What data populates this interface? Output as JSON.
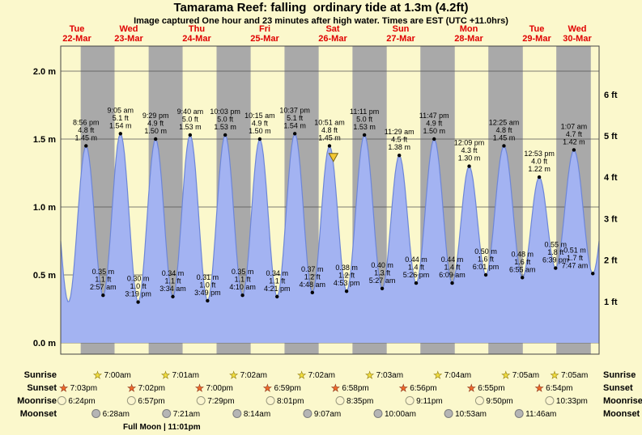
{
  "title": "Tamarama Reef: falling  ordinary tide at 1.3m (4.2ft)",
  "subtitle": "Image captured One hour and 23 minutes after high water. Times are EST (UTC +11.0hrs)",
  "colors": {
    "page_bg": "#fbf8cc",
    "day_bg": "#fbf8cc",
    "night_bg": "#a9a9a9",
    "curve_fill": "#a3b3f2",
    "curve_stroke": "#6d86d8",
    "day_label_red": "#e00000",
    "marker_fill": "#f2c832",
    "marker_stroke": "#7a6410",
    "sunrise_star": "#f2df3f",
    "sunset_star": "#ef6a2a",
    "moonrise_circle": "#fbf5cf",
    "moonset_circle": "#b5b5b5"
  },
  "axes": {
    "left_ticks": [
      "0.0 m",
      "0.5 m",
      "1.0 m",
      "1.5 m",
      "2.0 m"
    ],
    "right_ticks": [
      "1 ft",
      "2 ft",
      "3 ft",
      "4 ft",
      "5 ft",
      "6 ft"
    ]
  },
  "days": [
    {
      "name": "Tue",
      "date": "22-Mar",
      "noon_t": 0
    },
    {
      "name": "Wed",
      "date": "23-Mar",
      "noon_t": 24
    },
    {
      "name": "Thu",
      "date": "24-Mar",
      "noon_t": 48
    },
    {
      "name": "Fri",
      "date": "25-Mar",
      "noon_t": 72
    },
    {
      "name": "Sat",
      "date": "26-Mar",
      "noon_t": 96
    },
    {
      "name": "Sun",
      "date": "27-Mar",
      "noon_t": 120
    },
    {
      "name": "Mon",
      "date": "28-Mar",
      "noon_t": 144
    },
    {
      "name": "Tue",
      "date": "29-Mar",
      "noon_t": 168
    },
    {
      "name": "Wed",
      "date": "30-Mar",
      "noon_t": 192
    }
  ],
  "chart_data": {
    "type": "area",
    "title": "Tamarama Reef tide heights",
    "x_axis": "time, hours offset t from Tue 22-Mar 12:00 to Wed 30-Mar ~10:00",
    "ylim_m": [
      0,
      2.2
    ],
    "grid_m_levels": [
      0,
      0.5,
      1.0,
      1.5,
      2.0
    ],
    "tide_events": [
      {
        "t": -3.6,
        "height_m": 1.44,
        "type": "high",
        "labeled": false,
        "estimated": true
      },
      {
        "t": 2.73,
        "height_m": 0.3,
        "type": "low",
        "labeled": false,
        "estimated": true
      },
      {
        "t": 8.933,
        "day": "Tue 22-Mar",
        "time": "8:56 pm",
        "ft": "4.8 ft",
        "m": "1.45 m",
        "height_m": 1.45,
        "type": "high",
        "labeled": true
      },
      {
        "t": 14.95,
        "day": "Wed 23-Mar",
        "time": "2:57 am",
        "ft": "1.1 ft",
        "m": "0.35 m",
        "height_m": 0.35,
        "type": "low",
        "labeled": true
      },
      {
        "t": 21.083,
        "day": "Wed 23-Mar",
        "time": "9:05 am",
        "ft": "5.1 ft",
        "m": "1.54 m",
        "height_m": 1.54,
        "type": "high",
        "labeled": true
      },
      {
        "t": 27.317,
        "day": "Wed 23-Mar",
        "time": "3:19 pm",
        "ft": "1.0 ft",
        "m": "0.30 m",
        "height_m": 0.3,
        "type": "low",
        "labeled": true
      },
      {
        "t": 33.483,
        "day": "Wed 23-Mar",
        "time": "9:29 pm",
        "ft": "4.9 ft",
        "m": "1.50 m",
        "height_m": 1.5,
        "type": "high",
        "labeled": true
      },
      {
        "t": 39.567,
        "day": "Thu 24-Mar",
        "time": "3:34 am",
        "ft": "1.1 ft",
        "m": "0.34 m",
        "height_m": 0.34,
        "type": "low",
        "labeled": true
      },
      {
        "t": 45.667,
        "day": "Thu 24-Mar",
        "time": "9:40 am",
        "ft": "5.0 ft",
        "m": "1.53 m",
        "height_m": 1.53,
        "type": "high",
        "labeled": true
      },
      {
        "t": 51.817,
        "day": "Thu 24-Mar",
        "time": "3:49 pm",
        "ft": "1.0 ft",
        "m": "0.31 m",
        "height_m": 0.31,
        "type": "low",
        "labeled": true
      },
      {
        "t": 58.05,
        "day": "Thu 24-Mar",
        "time": "10:03 pm",
        "ft": "5.0 ft",
        "m": "1.53 m",
        "height_m": 1.53,
        "type": "high",
        "labeled": true
      },
      {
        "t": 64.167,
        "day": "Fri 25-Mar",
        "time": "4:10 am",
        "ft": "1.1 ft",
        "m": "0.35 m",
        "height_m": 0.35,
        "type": "low",
        "labeled": true
      },
      {
        "t": 70.25,
        "day": "Fri 25-Mar",
        "time": "10:15 am",
        "ft": "4.9 ft",
        "m": "1.50 m",
        "height_m": 1.5,
        "type": "high",
        "labeled": true
      },
      {
        "t": 76.35,
        "day": "Fri 25-Mar",
        "time": "4:21 pm",
        "ft": "1.1 ft",
        "m": "0.34 m",
        "height_m": 0.34,
        "type": "low",
        "labeled": true
      },
      {
        "t": 82.617,
        "day": "Fri 25-Mar",
        "time": "10:37 pm",
        "ft": "5.1 ft",
        "m": "1.54 m",
        "height_m": 1.54,
        "type": "high",
        "labeled": true
      },
      {
        "t": 88.8,
        "day": "Sat 26-Mar",
        "time": "4:48 am",
        "ft": "1.2 ft",
        "m": "0.37 m",
        "height_m": 0.37,
        "type": "low",
        "labeled": true
      },
      {
        "t": 94.85,
        "day": "Sat 26-Mar",
        "time": "10:51 am",
        "ft": "4.8 ft",
        "m": "1.45 m",
        "height_m": 1.45,
        "type": "high",
        "labeled": true
      },
      {
        "t": 100.883,
        "day": "Sat 26-Mar",
        "time": "4:53 pm",
        "ft": "1.2 ft",
        "m": "0.38 m",
        "height_m": 0.38,
        "type": "low",
        "labeled": true
      },
      {
        "t": 107.183,
        "day": "Sat 26-Mar",
        "time": "11:11 pm",
        "ft": "5.0 ft",
        "m": "1.53 m",
        "height_m": 1.53,
        "type": "high",
        "labeled": true
      },
      {
        "t": 113.45,
        "day": "Sun 27-Mar",
        "time": "5:27 am",
        "ft": "1.3 ft",
        "m": "0.40 m",
        "height_m": 0.4,
        "type": "low",
        "labeled": true
      },
      {
        "t": 119.483,
        "day": "Sun 27-Mar",
        "time": "11:29 am",
        "ft": "4.5 ft",
        "m": "1.38 m",
        "height_m": 1.38,
        "type": "high",
        "labeled": true
      },
      {
        "t": 125.433,
        "day": "Sun 27-Mar",
        "time": "5:26 pm",
        "ft": "1.4 ft",
        "m": "0.44 m",
        "height_m": 0.44,
        "type": "low",
        "labeled": true
      },
      {
        "t": 131.783,
        "day": "Sun 27-Mar",
        "time": "11:47 pm",
        "ft": "4.9 ft",
        "m": "1.50 m",
        "height_m": 1.5,
        "type": "high",
        "labeled": true
      },
      {
        "t": 138.15,
        "day": "Mon 28-Mar",
        "time": "6:09 am",
        "ft": "1.4 ft",
        "m": "0.44 m",
        "height_m": 0.44,
        "type": "low",
        "labeled": true
      },
      {
        "t": 144.15,
        "day": "Mon 28-Mar",
        "time": "12:09 pm",
        "ft": "4.3 ft",
        "m": "1.30 m",
        "height_m": 1.3,
        "type": "high",
        "labeled": true
      },
      {
        "t": 150.017,
        "day": "Mon 28-Mar",
        "time": "6:01 pm",
        "ft": "1.6 ft",
        "m": "0.50 m",
        "height_m": 0.5,
        "type": "low",
        "labeled": true
      },
      {
        "t": 156.417,
        "day": "Tue 29-Mar",
        "time": "12:25 am",
        "ft": "4.8 ft",
        "m": "1.45 m",
        "height_m": 1.45,
        "type": "high",
        "labeled": true
      },
      {
        "t": 162.917,
        "day": "Tue 29-Mar",
        "time": "6:55 am",
        "ft": "1.6 ft",
        "m": "0.48 m",
        "height_m": 0.48,
        "type": "low",
        "labeled": true
      },
      {
        "t": 168.883,
        "day": "Tue 29-Mar",
        "time": "12:53 pm",
        "ft": "4.0 ft",
        "m": "1.22 m",
        "height_m": 1.22,
        "type": "high",
        "labeled": true
      },
      {
        "t": 174.65,
        "day": "Tue 29-Mar",
        "time": "6:39 pm",
        "ft": "1.8 ft",
        "m": "0.55 m",
        "height_m": 0.55,
        "type": "low",
        "labeled": true
      },
      {
        "t": 181.117,
        "day": "Wed 30-Mar",
        "time": "1:07 am",
        "ft": "4.7 ft",
        "m": "1.42 m",
        "height_m": 1.42,
        "type": "high",
        "labeled": true
      },
      {
        "t": 187.783,
        "day": "Wed 30-Mar",
        "time": "7:47 am",
        "ft": "1.7 ft",
        "m": "0.51 m",
        "height_m": 0.51,
        "type": "low",
        "labeled": true
      },
      {
        "t": 194.1,
        "height_m": 1.38,
        "type": "high",
        "labeled": false,
        "estimated": true
      }
    ]
  },
  "marker": {
    "t": 96.233,
    "description": "current time, 1h23m after 10:51 am high water"
  },
  "astro": {
    "sunrise": {
      "label": "Sunrise",
      "items": [
        {
          "t": 19.0,
          "time": "7:00am"
        },
        {
          "t": 43.017,
          "time": "7:01am"
        },
        {
          "t": 67.033,
          "time": "7:02am"
        },
        {
          "t": 91.033,
          "time": "7:02am"
        },
        {
          "t": 115.05,
          "time": "7:03am"
        },
        {
          "t": 139.067,
          "time": "7:04am"
        },
        {
          "t": 163.083,
          "time": "7:05am"
        },
        {
          "t": 187.083,
          "time": "7:05am"
        }
      ]
    },
    "sunset": {
      "label": "Sunset",
      "items": [
        {
          "t": 7.05,
          "time": "7:03pm"
        },
        {
          "t": 31.033,
          "time": "7:02pm"
        },
        {
          "t": 55.0,
          "time": "7:00pm"
        },
        {
          "t": 78.983,
          "time": "6:59pm"
        },
        {
          "t": 102.967,
          "time": "6:58pm"
        },
        {
          "t": 126.933,
          "time": "6:56pm"
        },
        {
          "t": 150.917,
          "time": "6:55pm"
        },
        {
          "t": 174.9,
          "time": "6:54pm"
        }
      ]
    },
    "moonrise": {
      "label": "Moonrise",
      "items": [
        {
          "t": 6.4,
          "time": "6:24pm"
        },
        {
          "t": 30.95,
          "time": "6:57pm"
        },
        {
          "t": 55.483,
          "time": "7:29pm"
        },
        {
          "t": 80.017,
          "time": "8:01pm"
        },
        {
          "t": 104.583,
          "time": "8:35pm"
        },
        {
          "t": 129.183,
          "time": "9:11pm"
        },
        {
          "t": 153.833,
          "time": "9:50pm"
        },
        {
          "t": 178.55,
          "time": "10:33pm"
        }
      ]
    },
    "moonset": {
      "label": "Moonset",
      "items": [
        {
          "t": 18.467,
          "time": "6:28am"
        },
        {
          "t": 43.35,
          "time": "7:21am"
        },
        {
          "t": 68.233,
          "time": "8:14am"
        },
        {
          "t": 93.117,
          "time": "9:07am"
        },
        {
          "t": 118.0,
          "time": "10:00am"
        },
        {
          "t": 142.883,
          "time": "10:53am"
        },
        {
          "t": 167.767,
          "time": "11:46am"
        }
      ]
    },
    "full_moon": "Full Moon | 11:01pm"
  }
}
